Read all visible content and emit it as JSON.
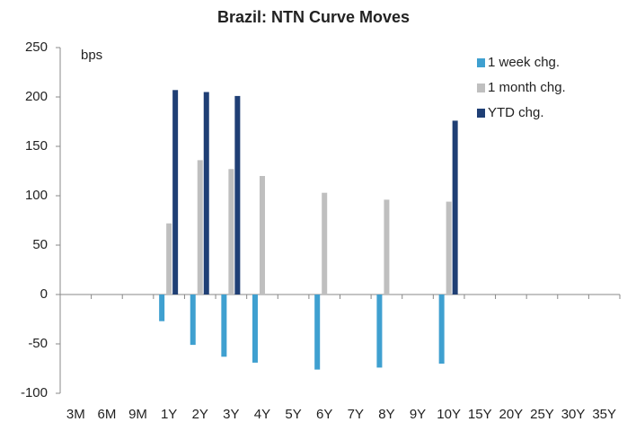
{
  "chart_data": {
    "type": "bar",
    "title": "Brazil: NTN Curve Moves",
    "y_unit": "bps",
    "categories": [
      "3M",
      "6M",
      "9M",
      "1Y",
      "2Y",
      "3Y",
      "4Y",
      "5Y",
      "6Y",
      "7Y",
      "8Y",
      "9Y",
      "10Y",
      "15Y",
      "20Y",
      "25Y",
      "30Y",
      "35Y"
    ],
    "series": [
      {
        "name": "1 week chg.",
        "color": "#3fa0d0",
        "values": [
          null,
          null,
          null,
          -27,
          -51,
          -63,
          -69,
          null,
          -76,
          null,
          -74,
          null,
          -70,
          null,
          null,
          null,
          null,
          null
        ]
      },
      {
        "name": "1 month chg.",
        "color": "#bfbfbf",
        "values": [
          null,
          null,
          null,
          72,
          136,
          127,
          120,
          null,
          103,
          null,
          96,
          null,
          94,
          null,
          null,
          null,
          null,
          null
        ]
      },
      {
        "name": "YTD chg.",
        "color": "#1f3f75",
        "values": [
          null,
          null,
          null,
          207,
          205,
          201,
          null,
          null,
          null,
          null,
          null,
          null,
          176,
          null,
          null,
          null,
          null,
          null
        ]
      }
    ],
    "ylim": [
      -100,
      250
    ],
    "yticks": [
      -100,
      -50,
      0,
      50,
      100,
      150,
      200,
      250
    ],
    "legend": "upper right"
  }
}
